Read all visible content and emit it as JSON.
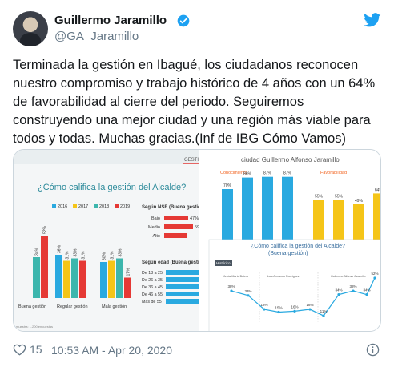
{
  "tweet": {
    "author_name": "Guillermo Jaramillo",
    "handle": "@GA_Jaramillo",
    "text": "Terminada la gestión en Ibagué, los ciudadanos reconocen nuestro compromiso y trabajo histórico de 4 años con un 64% de favorabilidad al cierre del periodo. Seguiremos construyendo una mejor ciudad y una región más viable para todos y todas. Muchas gracias.(Inf de IBG Cómo Vamos)",
    "likes": "15",
    "timestamp": "10:53 AM - Apr 20, 2020"
  },
  "icons": {
    "avatar": "avatar",
    "verified": "verified-badge-icon",
    "brand": "twitter-bird-icon",
    "like": "heart-icon",
    "info": "info-icon"
  },
  "colors": {
    "brand": "#1da1f2",
    "text": "#14171a",
    "muted": "#657786",
    "y2016": "#29a9e0",
    "y2017": "#f5c518",
    "y2018": "#3cb6ad",
    "y2019": "#e53935",
    "orange_label": "#f26522",
    "teal_title": "#2b8a9a"
  },
  "media": {
    "left_panel": {
      "title": "¿Cómo califica la gestión del Alcalde?",
      "header_tab": "GESTI",
      "legend": [
        "2016",
        "2017",
        "2018",
        "2019"
      ],
      "footnote": "muestra: 1.200 encuestas"
    },
    "right_top": {
      "title": "ciudad Guillermo Alfonso Jaramillo",
      "left_label": "Conocimiento",
      "right_label": "Favorabilidad"
    },
    "right_bottom": {
      "title_line1": "¿Cómo califica la gestión del Alcalde?",
      "title_line2": "(Buena gestión)",
      "tag": "Histórico",
      "names": [
        "Jesús María Botero",
        "Luis Armando Rodríguez",
        "Guillermo Alfonso Jaramillo"
      ]
    },
    "nse_panel": {
      "title": "Según NSE (Buena gestió",
      "rows": [
        {
          "label": "Bajo",
          "value": "47%"
        },
        {
          "label": "Medio",
          "value": "59"
        },
        {
          "label": "Alto",
          "value": ""
        }
      ]
    },
    "age_panel": {
      "title": "Según edad (Buena gesti",
      "rows": [
        "De 18 a 25",
        "De 26 a 35",
        "De 36 a 45",
        "De 46 a 55",
        "Más de 55"
      ]
    }
  },
  "chart_data": [
    {
      "type": "bar",
      "title": "¿Cómo califica la gestión del Alcalde?",
      "categories": [
        "Buena gestión",
        "Regular gestión",
        "Mala gestión"
      ],
      "series": [
        {
          "name": "2016",
          "values": [
            null,
            36,
            30
          ]
        },
        {
          "name": "2017",
          "values": [
            null,
            31,
            31
          ]
        },
        {
          "name": "2018",
          "values": [
            34,
            33,
            33
          ]
        },
        {
          "name": "2019",
          "values": [
            52,
            31,
            17
          ]
        }
      ],
      "data_labels": [
        [
          "",
          "36%",
          "30%"
        ],
        [
          "",
          "31%",
          "31%"
        ],
        [
          "34%",
          "33%",
          "33%"
        ],
        [
          "52%",
          "31%",
          "17%"
        ]
      ],
      "legend_position": "top"
    },
    {
      "type": "bar",
      "title": "Conocimiento",
      "values": [
        70,
        86,
        87,
        87
      ],
      "labels": [
        "70%",
        "86%",
        "87%",
        "87%"
      ]
    },
    {
      "type": "bar",
      "title": "Favorabilidad",
      "values": [
        55,
        55,
        49,
        64
      ],
      "labels": [
        "55%",
        "55%",
        "49%",
        "64%"
      ]
    },
    {
      "type": "line",
      "title": "¿Cómo califica la gestión del Alcalde? (Buena gestión)",
      "values": [
        38,
        33,
        18,
        15,
        16,
        18,
        11,
        34,
        38,
        34,
        52
      ],
      "labels": [
        "38%",
        "33%",
        "18%",
        "15%",
        "16%",
        "18%",
        "11%",
        "34%",
        "38%",
        "34%",
        "52%"
      ]
    }
  ]
}
